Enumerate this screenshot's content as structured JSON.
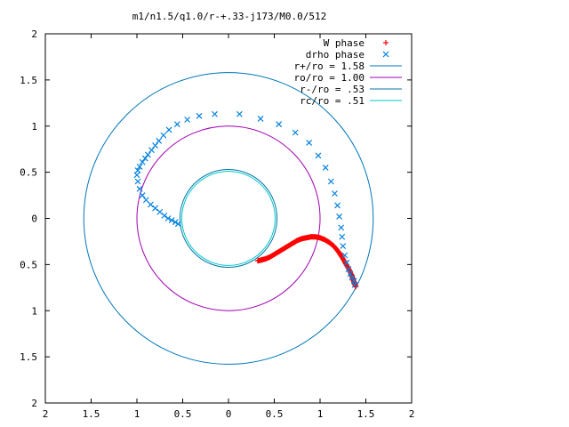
{
  "chart_data": {
    "type": "scatter",
    "title": "m1/n1.5/q1.0/r-+.33-j173/M0.0/512",
    "xlim": [
      -2,
      2
    ],
    "ylim": [
      -2,
      2
    ],
    "x_ticks": [
      "2",
      "1.5",
      "1",
      "0.5",
      "0",
      "0.5",
      "1",
      "1.5",
      "2"
    ],
    "y_ticks": [
      "2",
      "1.5",
      "1",
      "0.5",
      "0",
      "0.5",
      "1",
      "1.5",
      "2"
    ],
    "grid": false,
    "legend_position": "top-right",
    "series": [
      {
        "name": "W phase",
        "kind": "points",
        "marker": "+",
        "color": "#ff0000",
        "x": [
          0.32,
          0.36,
          0.4,
          0.45,
          0.5,
          0.55,
          0.6,
          0.65,
          0.7,
          0.75,
          0.8,
          0.85,
          0.9,
          0.95,
          1.0,
          1.05,
          1.1,
          1.15,
          1.2,
          1.24,
          1.28,
          1.32,
          1.35,
          1.37,
          1.39
        ],
        "y": [
          -0.46,
          -0.45,
          -0.44,
          -0.42,
          -0.39,
          -0.36,
          -0.33,
          -0.3,
          -0.27,
          -0.24,
          -0.22,
          -0.21,
          -0.2,
          -0.2,
          -0.21,
          -0.23,
          -0.26,
          -0.3,
          -0.36,
          -0.42,
          -0.49,
          -0.56,
          -0.63,
          -0.69,
          -0.74
        ]
      },
      {
        "name": "drho phase",
        "kind": "points",
        "marker": "x",
        "color": "#0080e0",
        "x": [
          -0.55,
          -0.58,
          -0.62,
          -0.66,
          -0.7,
          -0.75,
          -0.8,
          -0.85,
          -0.9,
          -0.94,
          -0.97,
          -0.99,
          -1.0,
          -0.99,
          -0.97,
          -0.94,
          -0.91,
          -0.88,
          -0.84,
          -0.8,
          -0.76,
          -0.71,
          -0.65,
          -0.56,
          -0.45,
          -0.32,
          -0.15,
          0.12,
          0.35,
          0.55,
          0.73,
          0.88,
          0.98,
          1.06,
          1.12,
          1.16,
          1.19,
          1.21,
          1.23,
          1.24,
          1.25,
          1.27,
          1.29,
          1.31,
          1.33,
          1.35,
          1.37,
          1.38
        ],
        "y": [
          -0.06,
          -0.04,
          -0.02,
          0.0,
          0.03,
          0.07,
          0.11,
          0.15,
          0.2,
          0.25,
          0.32,
          0.4,
          0.47,
          0.52,
          0.56,
          0.61,
          0.65,
          0.69,
          0.74,
          0.79,
          0.84,
          0.9,
          0.96,
          1.02,
          1.07,
          1.11,
          1.13,
          1.13,
          1.08,
          1.02,
          0.93,
          0.82,
          0.68,
          0.55,
          0.4,
          0.27,
          0.14,
          0.02,
          -0.1,
          -0.2,
          -0.3,
          -0.4,
          -0.48,
          -0.55,
          -0.6,
          -0.64,
          -0.68,
          -0.72
        ]
      },
      {
        "name": "r+/ro = 1.58",
        "kind": "circle",
        "r": 1.58,
        "color": "#0077bb"
      },
      {
        "name": "ro/ro = 1.00",
        "kind": "circle",
        "r": 1.0,
        "color": "#a000b0"
      },
      {
        "name": "r-/ro = .53",
        "kind": "circle",
        "r": 0.53,
        "color": "#0077aa"
      },
      {
        "name": "rc/ro = .51",
        "kind": "circle",
        "r": 0.51,
        "color": "#00c8c8"
      }
    ]
  }
}
